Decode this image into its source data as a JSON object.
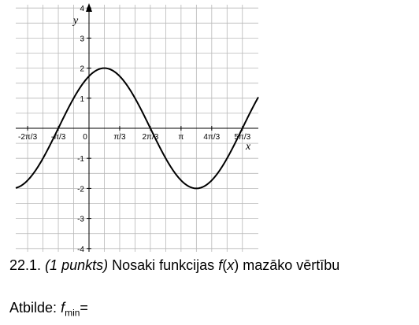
{
  "chart_data": {
    "type": "line",
    "function": "2*sin(x + pi/3)",
    "xlim": [
      -2.25,
      5.75
    ],
    "ylim": [
      -4.3,
      4.3
    ],
    "xlabel": "x",
    "ylabel": "y",
    "grid": true,
    "x_ticks": [
      {
        "value": -2.0944,
        "label": "-2π/3"
      },
      {
        "value": -1.0472,
        "label": "-π/3"
      },
      {
        "value": 0,
        "label": "0"
      },
      {
        "value": 1.0472,
        "label": "π/3"
      },
      {
        "value": 2.0944,
        "label": "2π/3"
      },
      {
        "value": 3.1416,
        "label": "π"
      },
      {
        "value": 4.1888,
        "label": "4π/3"
      },
      {
        "value": 5.236,
        "label": "5π/3"
      }
    ],
    "y_ticks": [
      {
        "value": 4,
        "label": "4"
      },
      {
        "value": 3,
        "label": "3"
      },
      {
        "value": 2,
        "label": "2"
      },
      {
        "value": 1,
        "label": "1"
      },
      {
        "value": -1,
        "label": "-1"
      },
      {
        "value": -2,
        "label": "-2"
      },
      {
        "value": -3,
        "label": "-3"
      },
      {
        "value": -4,
        "label": "-4"
      }
    ]
  },
  "task": {
    "number": "22.1.",
    "points": "(1 punkts)",
    "text_before": "Nosaki funkcijas",
    "fn": "f",
    "paren_open": "(",
    "var": "x",
    "paren_close": ")",
    "text_after": "mazāko vērtību"
  },
  "answer": {
    "label": "Atbilde:",
    "symbol": "f",
    "subscript": "min",
    "equals": "="
  }
}
